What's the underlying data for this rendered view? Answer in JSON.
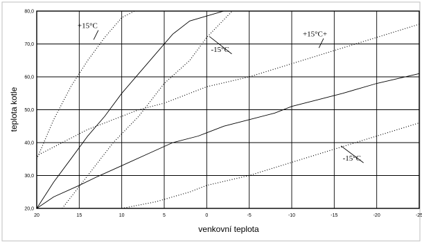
{
  "chart_data": {
    "type": "line",
    "title": "",
    "xlabel": "venkovní teplota",
    "ylabel": "teplota kotle",
    "xlim": [
      20,
      -25
    ],
    "ylim": [
      20,
      80
    ],
    "grid": true,
    "x_ticks": [
      "20",
      "15",
      "10",
      "5",
      "0",
      "-5",
      "-10",
      "-15",
      "-20",
      "-25"
    ],
    "y_ticks": [
      "20,0",
      "30,0",
      "40,0",
      "50,0",
      "60,0",
      "70,0",
      "80,0"
    ],
    "annotations": [
      {
        "text": "+15°C",
        "x": 15.2,
        "y": 74.8,
        "arrow_to": [
          13.3,
          71.3
        ]
      },
      {
        "text": "-15°C",
        "x": -0.5,
        "y": 67.6,
        "arrow_to": [
          -0.3,
          72.3
        ]
      },
      {
        "text": "+15°C+",
        "x": -11.3,
        "y": 72.3,
        "arrow_to": [
          -13.2,
          68.8
        ]
      },
      {
        "text": "-15°C",
        "x": -16.0,
        "y": 34.5,
        "arrow_to": [
          -15.8,
          39.0
        ]
      }
    ],
    "series": [
      {
        "style": "solid",
        "x": [
          20,
          18,
          16,
          14,
          12,
          10,
          8,
          6,
          4,
          2,
          -2,
          -2.5
        ],
        "y": [
          20,
          28,
          35,
          42,
          48,
          55,
          61,
          67,
          73,
          77,
          80,
          80
        ]
      },
      {
        "style": "solid",
        "x": [
          20,
          18,
          15,
          13,
          10,
          7,
          4,
          1,
          0,
          -2,
          -5,
          -8,
          -10,
          -13,
          -16,
          -20,
          -25
        ],
        "y": [
          20,
          23.5,
          27,
          29.5,
          33,
          36.5,
          40,
          42,
          43,
          45,
          47,
          49,
          51,
          53,
          55,
          58,
          61
        ]
      },
      {
        "style": "dotted",
        "x": [
          20,
          18,
          16,
          14,
          12,
          10,
          8.5
        ],
        "y": [
          35,
          47,
          57,
          65,
          72,
          78,
          80
        ]
      },
      {
        "style": "dotted",
        "x": [
          17,
          14,
          11,
          8,
          5,
          2,
          0,
          -3
        ],
        "y": [
          20,
          30,
          40,
          48,
          58,
          65,
          72,
          80
        ]
      },
      {
        "style": "dotted",
        "x": [
          20,
          17,
          14,
          11,
          8,
          5,
          2,
          0,
          -5,
          -10,
          -15,
          -20,
          -25
        ],
        "y": [
          36,
          40,
          44,
          47,
          50,
          52,
          55,
          57,
          60,
          64,
          68,
          72,
          76
        ]
      },
      {
        "style": "dotted",
        "x": [
          10,
          6,
          2,
          0,
          -5,
          -10,
          -15,
          -20,
          -25
        ],
        "y": [
          20,
          22,
          25,
          27,
          30,
          34,
          38,
          42,
          46
        ]
      }
    ]
  }
}
